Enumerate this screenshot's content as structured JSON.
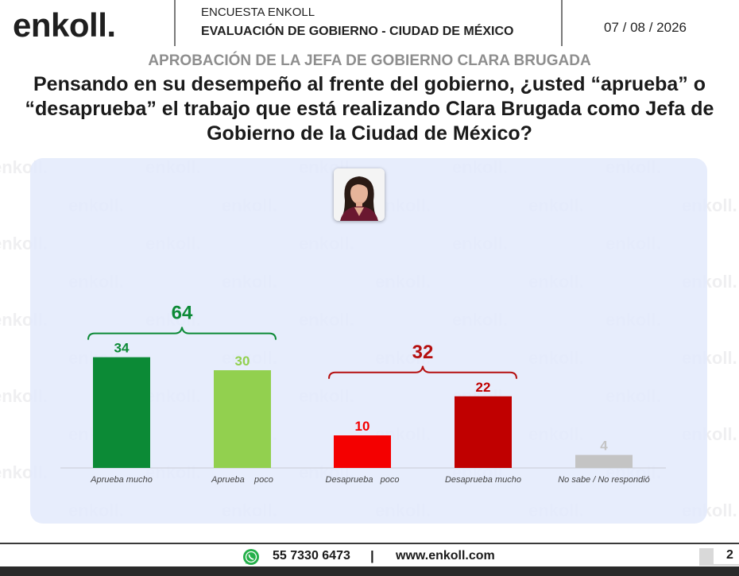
{
  "header": {
    "logo": "enkoll.",
    "survey_label": "ENCUESTA ENKOLL",
    "survey_title": "EVALUACIÓN DE GOBIERNO - CIUDAD DE MÉXICO",
    "date": "07 / 08 / 2026"
  },
  "subtitle": "APROBACIÓN DE LA JEFA DE GOBIERNO CLARA BRUGADA",
  "question": "Pensando en su desempeño al frente del gobierno, ¿usted “aprueba” o “desaprueba” el trabajo que está realizando Clara Brugada como Jefa de Gobierno de la Ciudad de México?",
  "watermark_text": "enkoll.",
  "chart_data": {
    "type": "bar",
    "categories": [
      "Aprueba mucho",
      "Aprueba    poco",
      "Desaprueba   poco",
      "Desaprueba mucho",
      "No sabe / No respondió"
    ],
    "values": [
      34,
      30,
      10,
      22,
      4
    ],
    "colors": [
      "#0c8a36",
      "#92d04f",
      "#f40000",
      "#c00000",
      "#c4c4c4"
    ],
    "ylim": [
      0,
      40
    ],
    "grid": false,
    "groups": [
      {
        "total": "64",
        "members": [
          0,
          1
        ],
        "color": "#0c8a36"
      },
      {
        "total": "32",
        "members": [
          2,
          3
        ],
        "color": "#b50f0f"
      }
    ]
  },
  "footer": {
    "whatsapp_icon": "whatsapp-icon",
    "phone": "55 7330 6473",
    "separator": "|",
    "website": "www.enkoll.com",
    "page_number": "2"
  }
}
